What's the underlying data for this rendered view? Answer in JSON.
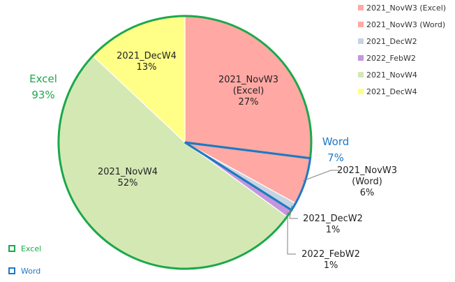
{
  "chart_data": {
    "type": "pie",
    "title": "",
    "slices": [
      {
        "label": "2021_NovW3 (Excel)",
        "value": 27,
        "pct": "27%",
        "color": "#FFA8A4",
        "group": "Excel"
      },
      {
        "label": "2021_NovW3 (Word)",
        "value": 6,
        "pct": "6%",
        "color": "#FFA8A4",
        "group": "Word"
      },
      {
        "label": "2021_DecW2",
        "value": 1,
        "pct": "1%",
        "color": "#C6D4E1",
        "group": "Word"
      },
      {
        "label": "2022_FebW2",
        "value": 1,
        "pct": "1%",
        "color": "#C595DE",
        "group": "Excel"
      },
      {
        "label": "2021_NovW4",
        "value": 52,
        "pct": "52%",
        "color": "#D4E8B4",
        "group": "Excel"
      },
      {
        "label": "2021_DecW4",
        "value": 13,
        "pct": "13%",
        "color": "#FFFF88",
        "group": "Excel"
      }
    ],
    "slice_labels": [
      {
        "lines": [
          "2021_NovW3",
          "(Excel)"
        ],
        "pct": "27%"
      },
      {
        "lines": [
          "2021_NovW3",
          "(Word)"
        ],
        "pct": "6%"
      },
      {
        "lines": [
          "2021_DecW2"
        ],
        "pct": "1%"
      },
      {
        "lines": [
          "2022_FebW2"
        ],
        "pct": "1%"
      },
      {
        "lines": [
          "2021_NovW4"
        ],
        "pct": "52%"
      },
      {
        "lines": [
          "2021_DecW4"
        ],
        "pct": "13%"
      }
    ],
    "groups": [
      {
        "name": "Excel",
        "pct": "93%",
        "color": "#1BA84A"
      },
      {
        "name": "Word",
        "pct": "7%",
        "color": "#1E78C8"
      }
    ],
    "legend": {
      "position": "top-right",
      "entries": [
        "2021_NovW3 (Excel)",
        "2021_NovW3 (Word)",
        "2021_DecW2",
        "2022_FebW2",
        "2021_NovW4",
        "2021_DecW4"
      ]
    },
    "group_legend": {
      "position": "bottom-left",
      "entries": [
        "Excel",
        "Word"
      ]
    }
  }
}
